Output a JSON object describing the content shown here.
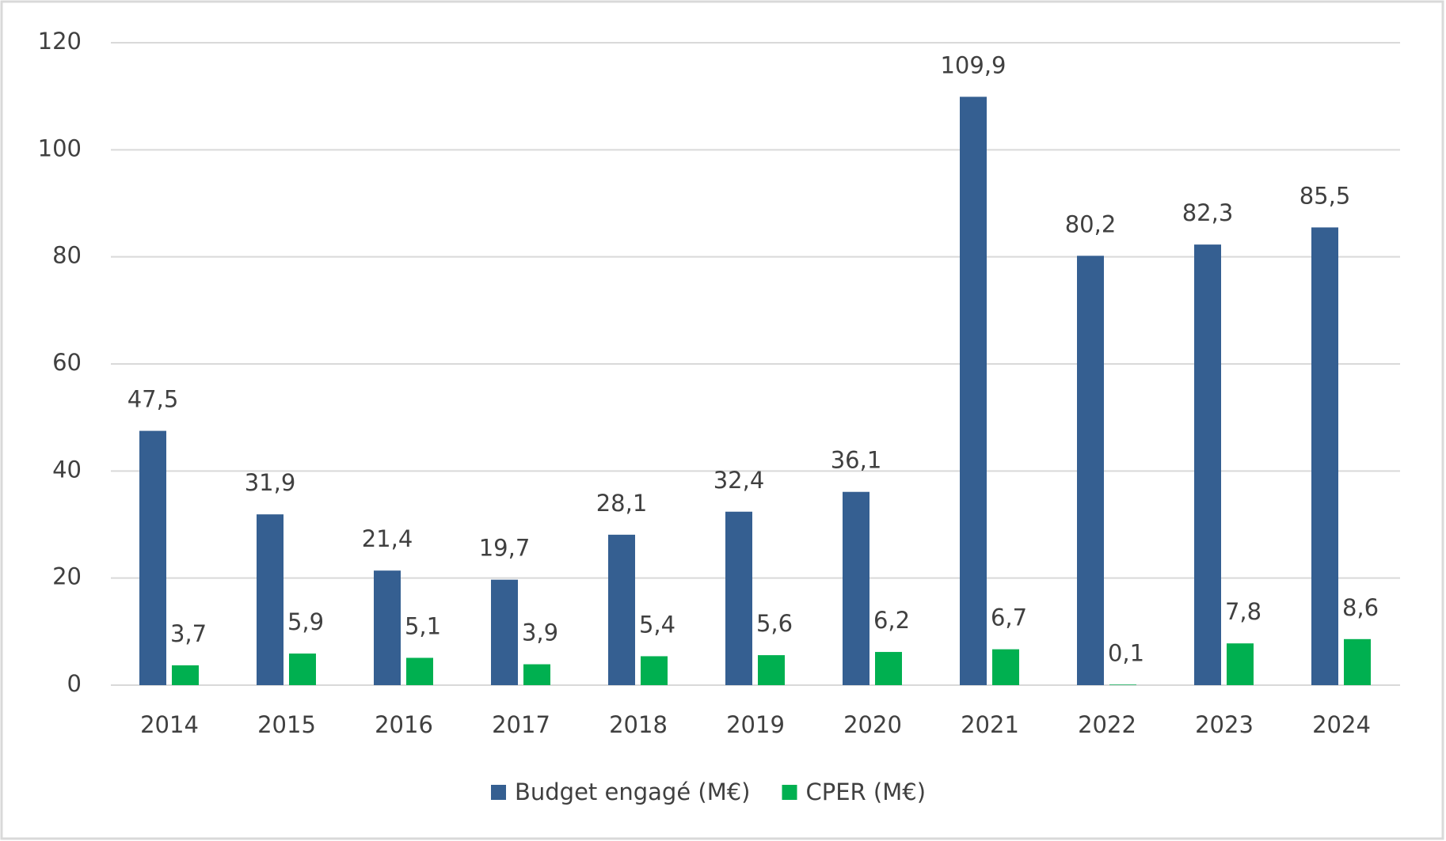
{
  "chart_data": {
    "type": "bar",
    "categories": [
      "2014",
      "2015",
      "2016",
      "2017",
      "2018",
      "2019",
      "2020",
      "2021",
      "2022",
      "2023",
      "2024"
    ],
    "series": [
      {
        "name": "Budget engagé (M€)",
        "color": "#355f91",
        "values": [
          47.5,
          31.9,
          21.4,
          19.7,
          28.1,
          32.4,
          36.1,
          109.9,
          80.2,
          82.3,
          85.5
        ],
        "value_labels": [
          "47,5",
          "31,9",
          "21,4",
          "19,7",
          "28,1",
          "32,4",
          "36,1",
          "109,9",
          "80,2",
          "82,3",
          "85,5"
        ]
      },
      {
        "name": "CPER (M€)",
        "color": "#00b050",
        "values": [
          3.7,
          5.9,
          5.1,
          3.9,
          5.4,
          5.6,
          6.2,
          6.7,
          0.1,
          7.8,
          8.6
        ],
        "value_labels": [
          "3,7",
          "5,9",
          "5,1",
          "3,9",
          "5,4",
          "5,6",
          "6,2",
          "6,7",
          "0,1",
          "7,8",
          "8,6"
        ]
      }
    ],
    "ylim": [
      0,
      120
    ],
    "yticks": [
      0,
      20,
      40,
      60,
      80,
      100,
      120
    ],
    "grid": true,
    "legend": "bottom"
  }
}
